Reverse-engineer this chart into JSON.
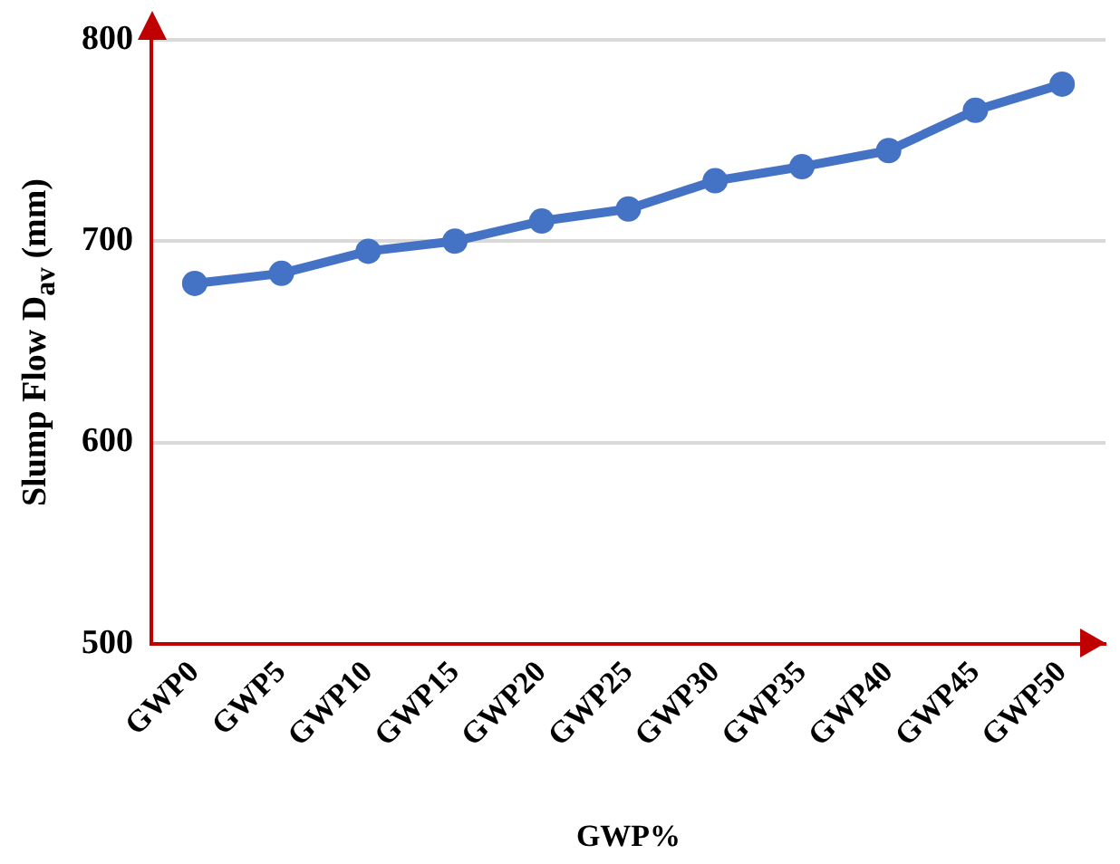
{
  "chart_data": {
    "type": "line",
    "xlabel": "GWP%",
    "ylabel": "Slump Flow D$_{av}$ (mm)",
    "categories": [
      "GWP0",
      "GWP5",
      "GWP10",
      "GWP15",
      "GWP20",
      "GWP25",
      "GWP30",
      "GWP35",
      "GWP40",
      "GWP45",
      "GWP50"
    ],
    "series": [
      {
        "color": "#4472c4",
        "values": [
          679,
          684,
          695,
          700,
          710,
          716,
          730,
          737,
          745,
          765,
          778
        ]
      }
    ],
    "ylim": [
      500,
      800
    ],
    "yticks": [
      500,
      600,
      700,
      800
    ],
    "grid": "y",
    "legend": false,
    "marker": "circle",
    "line_style": "solid"
  }
}
